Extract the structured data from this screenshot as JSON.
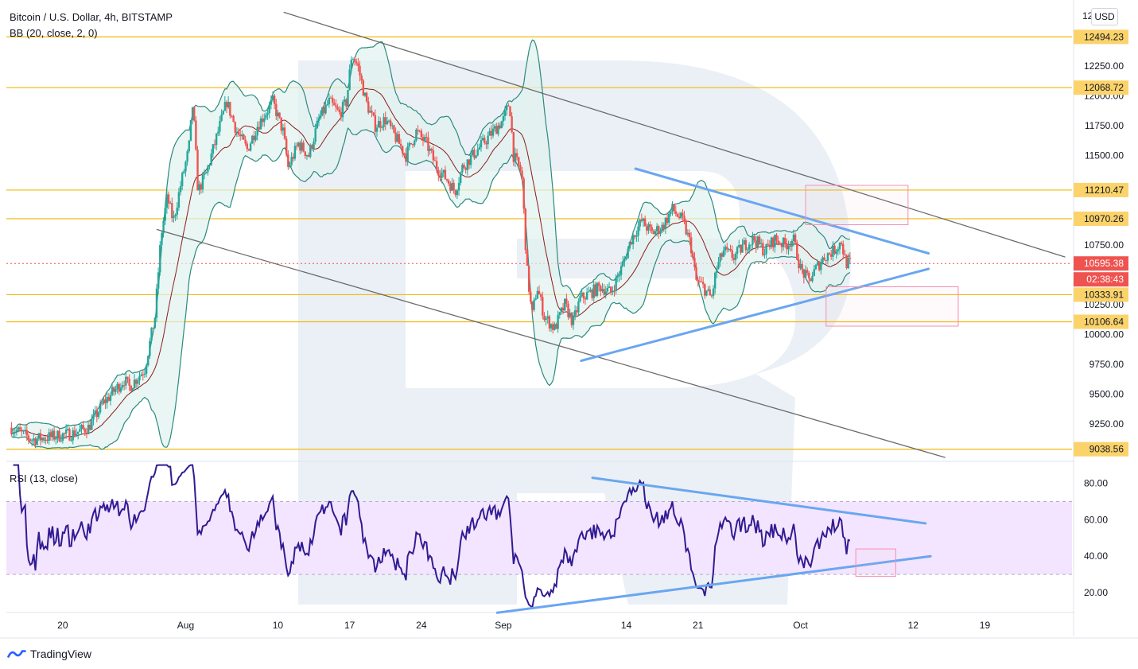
{
  "chart_title": "Bitcoin / U.S. Dollar, 4h, BITSTAMP",
  "bb_label": "BB (20, close, 2, 0)",
  "rsi_label": "RSI (13, close)",
  "currency_button": "USD",
  "brand": "TradingView",
  "colors": {
    "up": "#26a69a",
    "down": "#ef5350",
    "bb": "#2b8a7d",
    "bb_fill": "#e0f2ef",
    "basis": "#8e1b1b",
    "level": "#f0b90b",
    "trend_blue": "#6aa6f0",
    "channel": "#6b6b6b",
    "rsi": "#311b92",
    "rsi_band": "#f3e5ff",
    "box": "#f48fb1",
    "watermark": "#e8edf5"
  },
  "chart_data": {
    "type": "candlestick",
    "title": "Bitcoin / U.S. Dollar, 4h, BITSTAMP",
    "price_axis_ticks": [
      "12250.00",
      "12000.00",
      "11750.00",
      "11500.00",
      "10750.00",
      "10250.00",
      "10000.00",
      "9750.00",
      "9500.00",
      "9250.00"
    ],
    "price_axis_top": "12",
    "horizontal_levels": [
      {
        "value": 12494.23,
        "label": "12494.23"
      },
      {
        "value": 12068.72,
        "label": "12068.72"
      },
      {
        "value": 11210.47,
        "label": "11210.47"
      },
      {
        "value": 10970.26,
        "label": "10970.26"
      },
      {
        "value": 10333.91,
        "label": "10333.91"
      },
      {
        "value": 10106.64,
        "label": "10106.64"
      },
      {
        "value": 9038.56,
        "label": "9038.56"
      }
    ],
    "last_price": {
      "value": 10595.38,
      "label": "10595.38",
      "countdown": "02:38:43"
    },
    "price_range": [
      8950,
      12750
    ],
    "time_axis_labels": [
      "20",
      "Aug",
      "10",
      "17",
      "24",
      "Sep",
      "14",
      "21",
      "Oct",
      "12",
      "19"
    ],
    "time_axis_days": [
      20,
      32,
      41,
      48,
      55,
      63,
      75,
      82,
      92,
      103,
      110
    ],
    "time_range_days": [
      14.5,
      118.5
    ],
    "key_prices": [
      {
        "day": 15,
        "price": 9220
      },
      {
        "day": 17,
        "price": 9120
      },
      {
        "day": 21,
        "price": 9170
      },
      {
        "day": 22.5,
        "price": 9220
      },
      {
        "day": 24,
        "price": 9430
      },
      {
        "day": 26,
        "price": 9620
      },
      {
        "day": 26.5,
        "price": 9560
      },
      {
        "day": 28,
        "price": 9710
      },
      {
        "day": 29,
        "price": 10150
      },
      {
        "day": 29.6,
        "price": 10830
      },
      {
        "day": 30.2,
        "price": 11150
      },
      {
        "day": 30.8,
        "price": 10950
      },
      {
        "day": 31.5,
        "price": 11250
      },
      {
        "day": 32.3,
        "price": 11550
      },
      {
        "day": 32.7,
        "price": 11950
      },
      {
        "day": 33.2,
        "price": 11200
      },
      {
        "day": 34,
        "price": 11350
      },
      {
        "day": 35,
        "price": 11650
      },
      {
        "day": 36,
        "price": 11950
      },
      {
        "day": 37,
        "price": 11700
      },
      {
        "day": 38,
        "price": 11550
      },
      {
        "day": 39,
        "price": 11750
      },
      {
        "day": 40.5,
        "price": 11950
      },
      {
        "day": 41.5,
        "price": 11700
      },
      {
        "day": 42,
        "price": 11400
      },
      {
        "day": 43,
        "price": 11600
      },
      {
        "day": 44,
        "price": 11500
      },
      {
        "day": 45,
        "price": 11800
      },
      {
        "day": 46,
        "price": 11950
      },
      {
        "day": 47,
        "price": 11850
      },
      {
        "day": 47.7,
        "price": 11950
      },
      {
        "day": 48.2,
        "price": 12350
      },
      {
        "day": 48.8,
        "price": 12250
      },
      {
        "day": 49.6,
        "price": 11950
      },
      {
        "day": 50.5,
        "price": 11750
      },
      {
        "day": 51.5,
        "price": 11800
      },
      {
        "day": 52.5,
        "price": 11650
      },
      {
        "day": 53.5,
        "price": 11500
      },
      {
        "day": 54.5,
        "price": 11700
      },
      {
        "day": 55.5,
        "price": 11600
      },
      {
        "day": 56.5,
        "price": 11400
      },
      {
        "day": 57.5,
        "price": 11300
      },
      {
        "day": 58.3,
        "price": 11200
      },
      {
        "day": 59,
        "price": 11400
      },
      {
        "day": 60,
        "price": 11500
      },
      {
        "day": 61,
        "price": 11600
      },
      {
        "day": 62,
        "price": 11700
      },
      {
        "day": 63,
        "price": 11800
      },
      {
        "day": 63.6,
        "price": 11950
      },
      {
        "day": 64,
        "price": 11500
      },
      {
        "day": 64.8,
        "price": 11350
      },
      {
        "day": 65.3,
        "price": 10550
      },
      {
        "day": 65.8,
        "price": 10150
      },
      {
        "day": 66.3,
        "price": 10400
      },
      {
        "day": 67,
        "price": 10150
      },
      {
        "day": 68,
        "price": 10050
      },
      {
        "day": 69,
        "price": 10250
      },
      {
        "day": 69.8,
        "price": 10100
      },
      {
        "day": 70.5,
        "price": 10300
      },
      {
        "day": 71.5,
        "price": 10350
      },
      {
        "day": 72.5,
        "price": 10400
      },
      {
        "day": 73.5,
        "price": 10350
      },
      {
        "day": 74.5,
        "price": 10550
      },
      {
        "day": 75.5,
        "price": 10800
      },
      {
        "day": 76.5,
        "price": 10950
      },
      {
        "day": 77.5,
        "price": 10850
      },
      {
        "day": 78.5,
        "price": 10900
      },
      {
        "day": 79.5,
        "price": 11050
      },
      {
        "day": 80.5,
        "price": 10950
      },
      {
        "day": 81.3,
        "price": 10750
      },
      {
        "day": 81.8,
        "price": 10450
      },
      {
        "day": 82.5,
        "price": 10400
      },
      {
        "day": 83.3,
        "price": 10300
      },
      {
        "day": 83.8,
        "price": 10550
      },
      {
        "day": 84.5,
        "price": 10700
      },
      {
        "day": 85.5,
        "price": 10650
      },
      {
        "day": 86.5,
        "price": 10750
      },
      {
        "day": 87.5,
        "price": 10800
      },
      {
        "day": 88.5,
        "price": 10700
      },
      {
        "day": 89.5,
        "price": 10800
      },
      {
        "day": 90.5,
        "price": 10750
      },
      {
        "day": 91.3,
        "price": 10800
      },
      {
        "day": 92,
        "price": 10550
      },
      {
        "day": 92.8,
        "price": 10450
      },
      {
        "day": 93.5,
        "price": 10550
      },
      {
        "day": 94.3,
        "price": 10650
      },
      {
        "day": 95.2,
        "price": 10700
      },
      {
        "day": 96,
        "price": 10780
      },
      {
        "day": 96.4,
        "price": 10600
      },
      {
        "day": 97,
        "price": 10595
      }
    ],
    "rsi": {
      "axis_ticks": [
        "80.00",
        "60.00",
        "40.00",
        "20.00"
      ],
      "bands": [
        30,
        70
      ],
      "range": [
        10,
        92
      ]
    },
    "trendlines": [
      {
        "name": "upper-channel",
        "from": {
          "day": 41.6,
          "price": 12700
        },
        "to": {
          "day": 117.8,
          "price": 10650
        }
      },
      {
        "name": "lower-channel",
        "from": {
          "day": 29.2,
          "price": 10880
        },
        "to": {
          "day": 106.1,
          "price": 8970
        }
      },
      {
        "name": "triangle-top",
        "from": {
          "day": 75.9,
          "price": 11390
        },
        "to": {
          "day": 104.5,
          "price": 10680
        }
      },
      {
        "name": "triangle-bottom",
        "from": {
          "day": 70.6,
          "price": 9780
        },
        "to": {
          "day": 104.5,
          "price": 10550
        }
      },
      {
        "name": "rsi-top",
        "from": {
          "day": 71.7,
          "rsi": 83
        },
        "to": {
          "day": 104.2,
          "rsi": 58
        }
      },
      {
        "name": "rsi-bottom",
        "from": {
          "day": 62.4,
          "rsi": 9
        },
        "to": {
          "day": 104.7,
          "rsi": 40
        }
      }
    ],
    "boxes": [
      {
        "name": "target-box-up",
        "day0": 92.5,
        "day1": 102.5,
        "price0": 11250,
        "price1": 10920
      },
      {
        "name": "target-box-down",
        "day0": 94.5,
        "day1": 107.4,
        "price0": 10400,
        "price1": 10070
      },
      {
        "name": "rsi-box",
        "day0": 97.4,
        "day1": 101.3,
        "rsi0": 44,
        "rsi1": 29
      }
    ]
  }
}
